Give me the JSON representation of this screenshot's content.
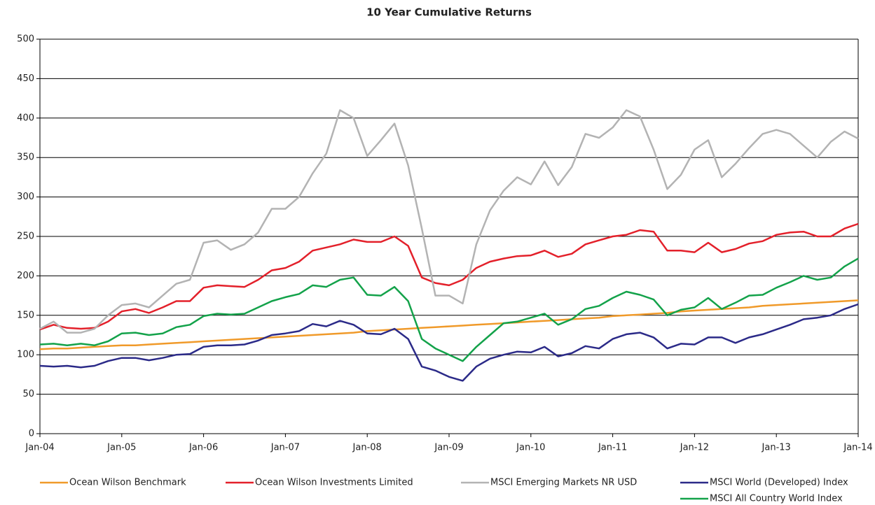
{
  "chart_data": {
    "type": "line",
    "title": "10 Year Cumulative Returns",
    "categories": [
      "Jan-04",
      null,
      null,
      null,
      null,
      null,
      "Jan-05",
      null,
      null,
      null,
      null,
      null,
      "Jan-06",
      null,
      null,
      null,
      null,
      null,
      "Jan-07",
      null,
      null,
      null,
      null,
      null,
      "Jan-08",
      null,
      null,
      null,
      null,
      null,
      "Jan-09",
      null,
      null,
      null,
      null,
      null,
      "Jan-10",
      null,
      null,
      null,
      null,
      null,
      "Jan-11",
      null,
      null,
      null,
      null,
      null,
      "Jan-12",
      null,
      null,
      null,
      null,
      null,
      "Jan-13",
      null,
      null,
      null,
      null,
      null,
      "Jan-14"
    ],
    "series": [
      {
        "name": "Ocean Wilson Benchmark",
        "color": "#f09a2a",
        "values": [
          107,
          108,
          108,
          109,
          110,
          111,
          112,
          112,
          113,
          114,
          115,
          116,
          117,
          118,
          119,
          120,
          121,
          122,
          123,
          124,
          125,
          126,
          127,
          128,
          130,
          131,
          132,
          133,
          134,
          135,
          136,
          137,
          138,
          139,
          140,
          141,
          142,
          143,
          144,
          145,
          146,
          147,
          149,
          150,
          151,
          152,
          153,
          155,
          156,
          157,
          158,
          159,
          160,
          162,
          163,
          164,
          165,
          166,
          167,
          168,
          169
        ]
      },
      {
        "name": "Ocean Wilson Investments Limited",
        "color": "#e3202a",
        "values": [
          132,
          138,
          134,
          133,
          134,
          142,
          155,
          158,
          153,
          160,
          168,
          168,
          185,
          188,
          187,
          186,
          195,
          207,
          210,
          218,
          232,
          236,
          240,
          246,
          243,
          243,
          250,
          238,
          198,
          191,
          188,
          195,
          210,
          218,
          222,
          225,
          226,
          232,
          224,
          228,
          240,
          245,
          250,
          252,
          258,
          256,
          232,
          232,
          230,
          242,
          230,
          234,
          241,
          244,
          252,
          255,
          256,
          250,
          250,
          260,
          266
        ]
      },
      {
        "name": "MSCI Emerging Markets NR USD",
        "color": "#b3b3b3",
        "values": [
          133,
          142,
          128,
          128,
          133,
          150,
          163,
          165,
          160,
          175,
          190,
          195,
          242,
          245,
          233,
          240,
          255,
          285,
          285,
          300,
          330,
          355,
          410,
          400,
          352,
          372,
          393,
          340,
          260,
          175,
          175,
          165,
          240,
          283,
          308,
          325,
          316,
          345,
          315,
          338,
          380,
          375,
          388,
          410,
          402,
          360,
          310,
          328,
          360,
          372,
          325,
          342,
          362,
          380,
          385,
          380,
          365,
          350,
          370,
          383,
          374
        ]
      },
      {
        "name": "MSCI World (Developed) Index",
        "color": "#2b2a88",
        "values": [
          86,
          85,
          86,
          84,
          86,
          92,
          96,
          96,
          93,
          96,
          100,
          101,
          110,
          112,
          112,
          113,
          118,
          125,
          127,
          130,
          139,
          136,
          143,
          138,
          127,
          126,
          133,
          120,
          85,
          80,
          72,
          67,
          85,
          95,
          100,
          104,
          103,
          110,
          98,
          102,
          111,
          108,
          120,
          126,
          128,
          122,
          108,
          114,
          113,
          122,
          122,
          115,
          122,
          126,
          132,
          138,
          145,
          147,
          150,
          158,
          164
        ]
      },
      {
        "name": "MSCI All Country World Index",
        "color": "#13a24a",
        "values": [
          113,
          114,
          112,
          114,
          112,
          117,
          127,
          128,
          125,
          127,
          135,
          138,
          149,
          152,
          151,
          152,
          160,
          168,
          173,
          177,
          188,
          186,
          195,
          198,
          176,
          175,
          186,
          168,
          120,
          108,
          100,
          92,
          110,
          125,
          140,
          142,
          147,
          152,
          138,
          145,
          158,
          162,
          172,
          180,
          176,
          170,
          150,
          157,
          160,
          172,
          158,
          166,
          175,
          176,
          185,
          192,
          200,
          195,
          198,
          212,
          222
        ]
      }
    ],
    "ylim": [
      0,
      500
    ],
    "yticks": [
      0,
      50,
      100,
      150,
      200,
      250,
      300,
      350,
      400,
      450,
      500
    ],
    "grid": true
  }
}
